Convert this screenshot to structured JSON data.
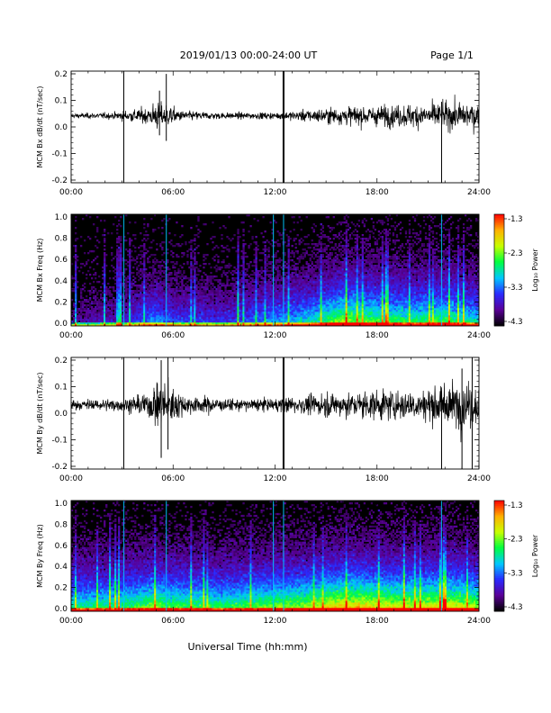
{
  "header": {
    "title": "2019/01/13  00:00-24:00 UT",
    "page": "Page 1/1"
  },
  "footer": {
    "xlabel": "Universal Time (hh:mm)"
  },
  "colorbar": {
    "label": "Log₁₀ Power",
    "ticks": [
      "-1.3",
      "-2.3",
      "-3.3",
      "-4.3"
    ],
    "range": [
      -4.3,
      -1.3
    ],
    "colors": [
      "#000000",
      "#5a0096",
      "#2a2aff",
      "#00c8ff",
      "#00ff40",
      "#c8ff00",
      "#ffb000",
      "#ff0000"
    ]
  },
  "chart_data": [
    {
      "type": "line",
      "ylabel": "MCM Bx dB/dt (nT/sec)",
      "xlim": [
        "00:00",
        "24:00"
      ],
      "ylim": [
        -0.2,
        0.2
      ],
      "yticks": [
        "0.2",
        "0.1",
        "0.0",
        "-0.1",
        "-0.2"
      ],
      "xticks": [
        "00:00",
        "06:00",
        "12:00",
        "18:00",
        "24:00"
      ],
      "baseline": 0.04,
      "noise_profile": [
        [
          0,
          0.006
        ],
        [
          2.5,
          0.008
        ],
        [
          3.0,
          0.012
        ],
        [
          4.5,
          0.02
        ],
        [
          5.0,
          0.035
        ],
        [
          5.5,
          0.03
        ],
        [
          6.5,
          0.012
        ],
        [
          9,
          0.008
        ],
        [
          12,
          0.008
        ],
        [
          14,
          0.015
        ],
        [
          16,
          0.022
        ],
        [
          18,
          0.025
        ],
        [
          21,
          0.03
        ],
        [
          23,
          0.035
        ],
        [
          24,
          0.03
        ]
      ],
      "spikes": [
        [
          3.1,
          0.2,
          -0.2
        ],
        [
          12.5,
          0.2,
          -0.2
        ],
        [
          21.8,
          0.09,
          -0.2
        ],
        [
          5.6,
          0.19,
          -0.05
        ],
        [
          5.2,
          0.13,
          -0.03
        ]
      ]
    },
    {
      "type": "heatmap",
      "ylabel": "MCM Bx Freq (Hz)",
      "xlim": [
        "00:00",
        "24:00"
      ],
      "ylim": [
        0.0,
        1.0
      ],
      "yticks": [
        "1.0",
        "0.8",
        "0.6",
        "0.4",
        "0.2",
        "0.0"
      ],
      "xticks": [
        "00:00",
        "06:00",
        "12:00",
        "18:00",
        "24:00"
      ],
      "vlines": [
        3.1,
        5.6,
        11.9,
        12.5,
        21.8
      ],
      "activity_profile": [
        [
          0,
          0.15
        ],
        [
          3,
          0.25
        ],
        [
          5,
          0.45
        ],
        [
          6,
          0.35
        ],
        [
          9,
          0.3
        ],
        [
          12,
          0.45
        ],
        [
          14,
          0.55
        ],
        [
          16,
          0.8
        ],
        [
          18,
          0.7
        ],
        [
          20,
          0.65
        ],
        [
          22,
          0.7
        ],
        [
          24,
          0.55
        ]
      ]
    },
    {
      "type": "line",
      "ylabel": "MCM By dB/dt (nT/sec)",
      "xlim": [
        "00:00",
        "24:00"
      ],
      "ylim": [
        -0.2,
        0.2
      ],
      "yticks": [
        "0.2",
        "0.1",
        "0.0",
        "-0.1",
        "-0.2"
      ],
      "xticks": [
        "00:00",
        "06:00",
        "12:00",
        "18:00",
        "24:00"
      ],
      "baseline": 0.03,
      "noise_profile": [
        [
          0,
          0.012
        ],
        [
          3,
          0.015
        ],
        [
          4.5,
          0.03
        ],
        [
          5.0,
          0.05
        ],
        [
          5.6,
          0.06
        ],
        [
          6.5,
          0.025
        ],
        [
          9,
          0.015
        ],
        [
          12,
          0.015
        ],
        [
          14,
          0.025
        ],
        [
          16,
          0.03
        ],
        [
          18,
          0.035
        ],
        [
          21,
          0.04
        ],
        [
          23,
          0.06
        ],
        [
          24,
          0.05
        ]
      ],
      "spikes": [
        [
          3.1,
          0.2,
          -0.2
        ],
        [
          12.5,
          0.2,
          -0.2
        ],
        [
          21.8,
          0.06,
          -0.2
        ],
        [
          5.3,
          0.19,
          -0.16
        ],
        [
          5.7,
          0.2,
          -0.13
        ],
        [
          23.6,
          0.2,
          -0.2
        ],
        [
          23.0,
          0.16,
          -0.2
        ]
      ]
    },
    {
      "type": "heatmap",
      "ylabel": "MCM By Freq (Hz)",
      "xlim": [
        "00:00",
        "24:00"
      ],
      "ylim": [
        0.0,
        1.0
      ],
      "yticks": [
        "1.0",
        "0.8",
        "0.6",
        "0.4",
        "0.2",
        "0.0"
      ],
      "xticks": [
        "00:00",
        "06:00",
        "12:00",
        "18:00",
        "24:00"
      ],
      "vlines": [
        3.1,
        5.6,
        11.9,
        12.5,
        21.8
      ],
      "activity_profile": [
        [
          0,
          0.6
        ],
        [
          3,
          0.65
        ],
        [
          5,
          0.75
        ],
        [
          6,
          0.7
        ],
        [
          9,
          0.65
        ],
        [
          12,
          0.75
        ],
        [
          14,
          0.8
        ],
        [
          16,
          0.95
        ],
        [
          18,
          0.9
        ],
        [
          20,
          0.85
        ],
        [
          22,
          0.9
        ],
        [
          24,
          0.8
        ]
      ]
    }
  ]
}
